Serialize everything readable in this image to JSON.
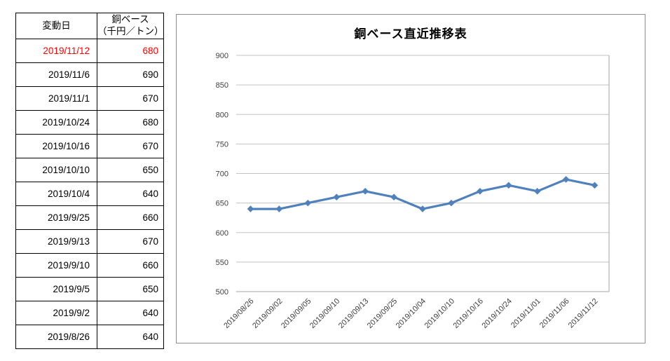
{
  "table": {
    "header": {
      "date_label": "変動日",
      "value_label_line1": "銅ベース",
      "value_label_line2": "（千円／トン）"
    },
    "rows": [
      {
        "date": "2019/11/12",
        "value": "680",
        "highlight": true
      },
      {
        "date": "2019/11/6",
        "value": "690",
        "highlight": false
      },
      {
        "date": "2019/11/1",
        "value": "670",
        "highlight": false
      },
      {
        "date": "2019/10/24",
        "value": "680",
        "highlight": false
      },
      {
        "date": "2019/10/16",
        "value": "670",
        "highlight": false
      },
      {
        "date": "2019/10/10",
        "value": "650",
        "highlight": false
      },
      {
        "date": "2019/10/4",
        "value": "640",
        "highlight": false
      },
      {
        "date": "2019/9/25",
        "value": "660",
        "highlight": false
      },
      {
        "date": "2019/9/13",
        "value": "670",
        "highlight": false
      },
      {
        "date": "2019/9/10",
        "value": "660",
        "highlight": false
      },
      {
        "date": "2019/9/5",
        "value": "650",
        "highlight": false
      },
      {
        "date": "2019/9/2",
        "value": "640",
        "highlight": false
      },
      {
        "date": "2019/8/26",
        "value": "640",
        "highlight": false
      }
    ]
  },
  "chart_data": {
    "type": "line",
    "title": "銅ベース直近推移表",
    "categories": [
      "2019/08/26",
      "2019/09/02",
      "2019/09/05",
      "2019/09/10",
      "2019/09/13",
      "2019/09/25",
      "2019/10/04",
      "2019/10/10",
      "2019/10/16",
      "2019/10/24",
      "2019/11/01",
      "2019/11/06",
      "2019/11/12"
    ],
    "values": [
      640,
      640,
      650,
      660,
      670,
      660,
      640,
      650,
      670,
      680,
      670,
      690,
      680
    ],
    "xlabel": "",
    "ylabel": "",
    "ylim": [
      500,
      900
    ],
    "ytick_step": 50,
    "grid": "horizontal",
    "legend": "none",
    "marker": "diamond"
  },
  "colors": {
    "highlight_red": "#ff0000",
    "line_blue": "#4f81bd",
    "gridline": "#c3c3c3",
    "axis_line": "#a6a6a6",
    "tick_text": "#3f3f3f",
    "chart_border": "#8c8c8c",
    "table_border": "#000000"
  }
}
